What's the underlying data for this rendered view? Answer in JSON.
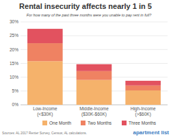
{
  "chart_data": {
    "type": "bar",
    "stacked": true,
    "title": "Rental insecurity affects nearly 1 in 5",
    "subtitle": "For how many of the past three months were you unable to pay rent in full?",
    "categories": [
      "Low-Income\n(<$30K)",
      "Middle-Income\n($30K-$60K)",
      "High-Income\n(>$60K)"
    ],
    "series": [
      {
        "name": "One Month",
        "color": "#f5b26b",
        "values": [
          15.8,
          9.0,
          5.2
        ]
      },
      {
        "name": "Two Months",
        "color": "#ef8262",
        "values": [
          6.5,
          3.2,
          1.8
        ]
      },
      {
        "name": "Three Months",
        "color": "#e2525f",
        "values": [
          5.2,
          2.5,
          1.7
        ]
      }
    ],
    "ylim": [
      0,
      30
    ],
    "yticks": [
      {
        "value": 0,
        "label": "0%"
      },
      {
        "value": 5,
        "label": "5%"
      },
      {
        "value": 10,
        "label": "10%"
      },
      {
        "value": 15,
        "label": "15%"
      },
      {
        "value": 20,
        "label": "20%"
      },
      {
        "value": 25,
        "label": "25%"
      },
      {
        "value": 30,
        "label": "30%"
      }
    ],
    "grid": true,
    "legend": "bottom",
    "source": "Sources: AL 2017 Renter Survey, Census; AL calculations.",
    "logo": "apartment list"
  }
}
